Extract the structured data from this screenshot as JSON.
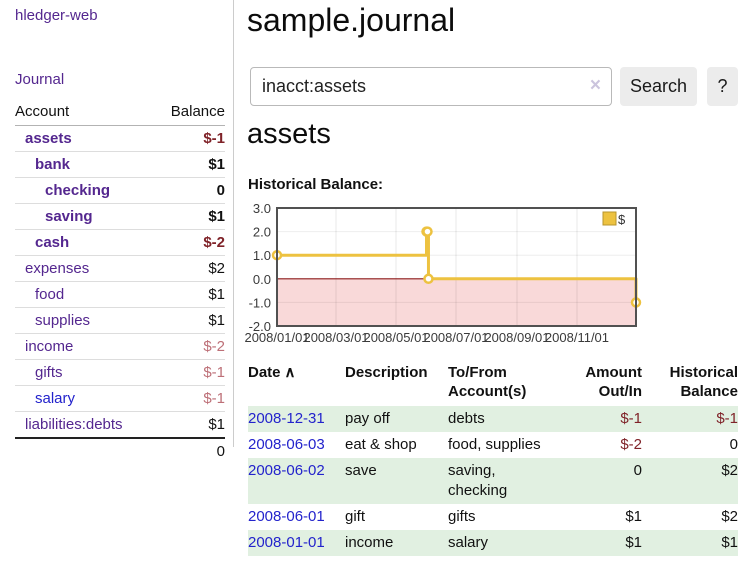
{
  "app": {
    "title": "hledger-web"
  },
  "sidebar": {
    "journal_link": "Journal",
    "accounts": {
      "headers": {
        "account": "Account",
        "balance": "Balance"
      },
      "rows": [
        {
          "name": "assets",
          "balance": "$-1"
        },
        {
          "name": "bank",
          "balance": "$1"
        },
        {
          "name": "checking",
          "balance": "0"
        },
        {
          "name": "saving",
          "balance": "$1"
        },
        {
          "name": "cash",
          "balance": "$-2"
        },
        {
          "name": "expenses",
          "balance": "$2"
        },
        {
          "name": "food",
          "balance": "$1"
        },
        {
          "name": "supplies",
          "balance": "$1"
        },
        {
          "name": "income",
          "balance": "$-2"
        },
        {
          "name": "gifts",
          "balance": "$-1"
        },
        {
          "name": "salary",
          "balance": "$-1"
        },
        {
          "name": "liabilities:debts",
          "balance": "$1"
        }
      ],
      "total": "0"
    }
  },
  "main": {
    "title": "sample.journal",
    "section_title": "assets",
    "historical_label": "Historical Balance:"
  },
  "search": {
    "value": "inacct:assets",
    "clear_icon": "×",
    "button_label": "Search",
    "help_label": "?"
  },
  "register": {
    "headers": {
      "date": "Date",
      "sort_icon": "∧",
      "description": "Description",
      "accounts": "To/From Account(s)",
      "amount": "Amount Out/In",
      "balance": "Historical Balance"
    },
    "rows": [
      {
        "date": "2008-12-31",
        "description": "pay off",
        "accounts": "debts",
        "amount": "$-1",
        "balance": "$-1"
      },
      {
        "date": "2008-06-03",
        "description": "eat & shop",
        "accounts": "food, supplies",
        "amount": "$-2",
        "balance": "0"
      },
      {
        "date": "2008-06-02",
        "description": "save",
        "accounts": "saving, checking",
        "amount": "0",
        "balance": "$2"
      },
      {
        "date": "2008-06-01",
        "description": "gift",
        "accounts": "gifts",
        "amount": "$1",
        "balance": "$2"
      },
      {
        "date": "2008-01-01",
        "description": "income",
        "accounts": "salary",
        "amount": "$1",
        "balance": "$1"
      }
    ]
  },
  "chart_data": {
    "type": "line",
    "title": "Historical Balance: assets",
    "step": true,
    "series": [
      {
        "name": "$",
        "color": "#edc240",
        "points": [
          [
            "2008-01-01",
            1
          ],
          [
            "2008-06-01",
            2
          ],
          [
            "2008-06-02",
            2
          ],
          [
            "2008-06-03",
            0
          ],
          [
            "2008-12-31",
            -1
          ]
        ]
      }
    ],
    "xlim": [
      "2008-01-01",
      "2008-12-31"
    ],
    "ylim": [
      -2,
      3
    ],
    "yticks": [
      3,
      2,
      1,
      0,
      -1,
      -2
    ],
    "ytick_labels": [
      "3.0",
      "2.0",
      "1.0",
      "0.0",
      "-1.0",
      "-2.0"
    ],
    "xticks": [
      {
        "date": "2008-01-01",
        "label": "2008/01/01"
      },
      {
        "date": "2008-03-01",
        "label": "2008/03/01"
      },
      {
        "date": "2008-05-01",
        "label": "2008/05/01"
      },
      {
        "date": "2008-07-01",
        "label": "2008/07/01"
      },
      {
        "date": "2008-09-01",
        "label": "2008/09/01"
      },
      {
        "date": "2008-11-01",
        "label": "2008/11/01"
      }
    ],
    "legend": {
      "position": "top-right",
      "entries": [
        {
          "label": "$",
          "color": "#edc240"
        }
      ]
    },
    "grid": true,
    "below_zero_fill": "#f9d9d9",
    "zero_line_color": "#8f1b1b"
  },
  "colors": {
    "accent_purple": "#54278f",
    "link_blue": "#2323cc",
    "negative_strong": "#7f2228",
    "negative_soft": "#bd6f77",
    "row_stripe_green": "#e1f0e1",
    "series_yellow": "#edc240"
  }
}
